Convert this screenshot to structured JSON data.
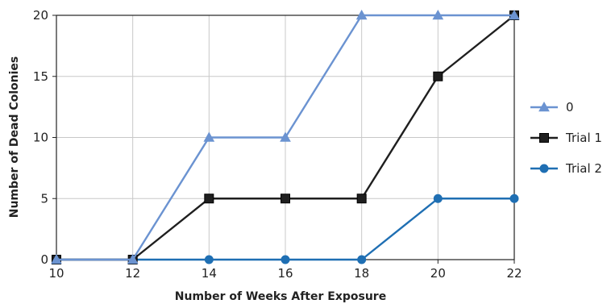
{
  "chart_data": {
    "type": "line",
    "xlabel": "Number of Weeks After Exposure",
    "ylabel": "Number of Dead Colonies",
    "x": [
      10,
      12,
      14,
      16,
      18,
      20,
      22
    ],
    "xlim": [
      10,
      22
    ],
    "ylim": [
      0,
      20
    ],
    "x_ticks": [
      "10",
      "12",
      "14",
      "16",
      "18",
      "20",
      "22"
    ],
    "y_ticks": [
      "0",
      "5",
      "10",
      "15",
      "20"
    ],
    "grid": true,
    "legend_position": "right",
    "series": [
      {
        "name": "0",
        "values": [
          0,
          0,
          10,
          10,
          20,
          20,
          20
        ],
        "color": "#6b93d1",
        "marker": "triangle"
      },
      {
        "name": "Trial 1",
        "values": [
          0,
          0,
          5,
          5,
          5,
          15,
          20
        ],
        "color": "#1f1f1f",
        "marker": "square"
      },
      {
        "name": "Trial 2",
        "values": [
          0,
          0,
          0,
          0,
          0,
          5,
          5
        ],
        "color": "#1f6fb3",
        "marker": "circle"
      }
    ]
  }
}
